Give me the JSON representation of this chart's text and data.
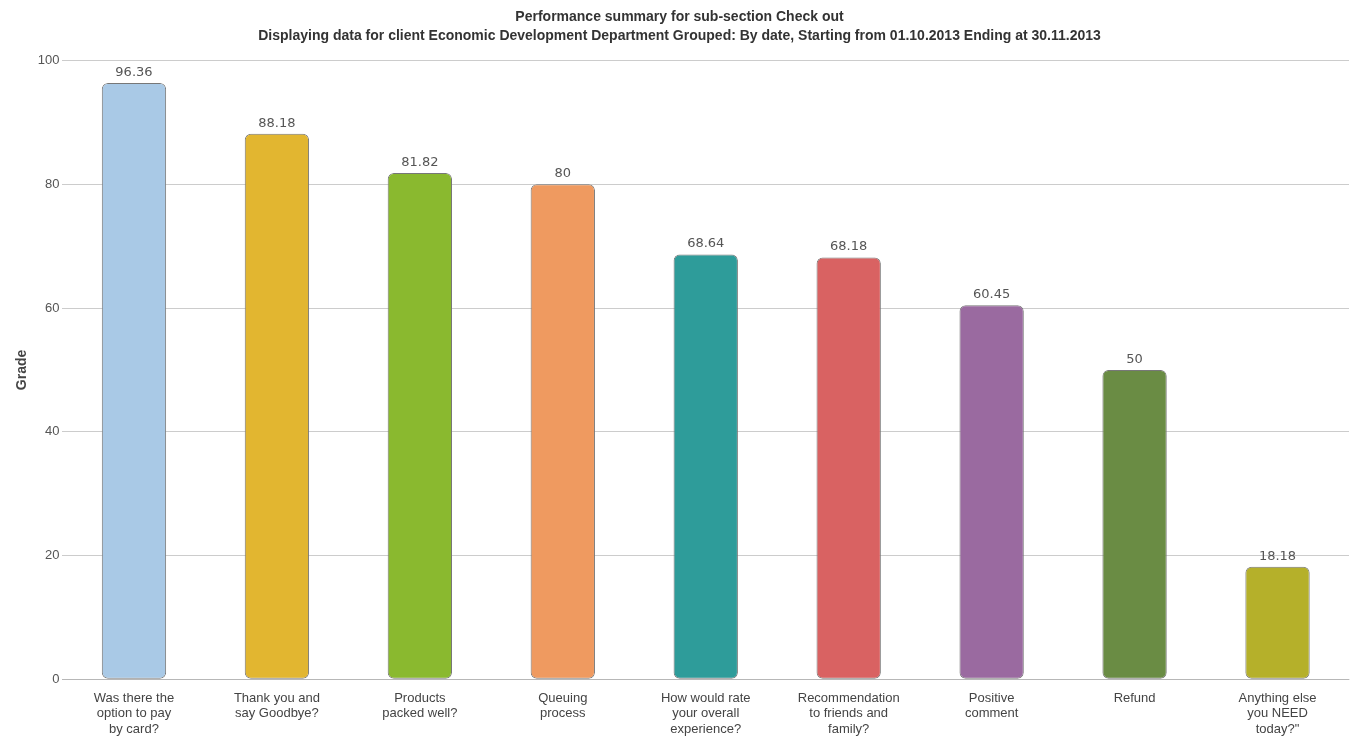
{
  "chart_data": {
    "type": "bar",
    "title": "Performance summary for sub-section Check out",
    "subtitle": "Displaying data for client Economic Development Department Grouped: By date, Starting from 01.10.2013 Ending at 30.11.2013",
    "ylabel": "Grade",
    "categories": [
      "Was there the option to pay by card?",
      "Thank you and say Goodbye?",
      "Products packed well?",
      "Queuing process",
      "How would rate your overall experience?",
      "Recommendation to friends and family?",
      "Positive comment",
      "Refund",
      "Anything else you NEED today?\""
    ],
    "values": [
      96.36,
      88.18,
      81.82,
      80,
      68.64,
      68.18,
      60.45,
      50,
      18.18
    ],
    "colors": [
      "#a9c9e6",
      "#e2b630",
      "#8ab92f",
      "#ef9a60",
      "#2e9c9a",
      "#d96262",
      "#9a6aa0",
      "#6a8c44",
      "#b5b02a"
    ],
    "ylim": [
      0,
      100
    ],
    "yticks": [
      0,
      20,
      40,
      60,
      80,
      100
    ],
    "grid": "y",
    "data_labels": true,
    "legend": false
  }
}
